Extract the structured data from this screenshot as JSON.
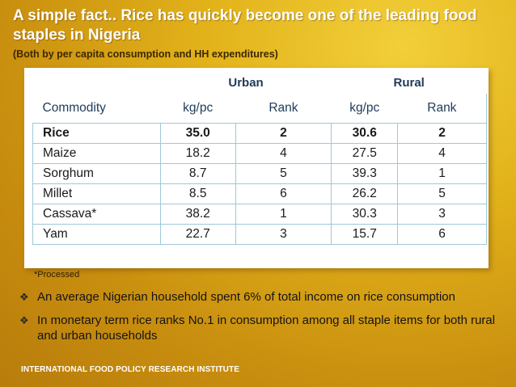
{
  "slide": {
    "title": "A simple fact.. Rice has quickly become one of the leading food staples in Nigeria",
    "subtitle": "(Both by per capita consumption and HH expenditures)"
  },
  "table": {
    "group_headers": {
      "urban": "Urban",
      "rural": "Rural"
    },
    "columns": [
      "Commodity",
      "kg/pc",
      "Rank",
      "kg/pc",
      "Rank"
    ],
    "rows": [
      [
        "Rice",
        "35.0",
        "2",
        "30.6",
        "2"
      ],
      [
        "Maize",
        "18.2",
        "4",
        "27.5",
        "4"
      ],
      [
        "Sorghum",
        "8.7",
        "5",
        "39.3",
        "1"
      ],
      [
        "Millet",
        "8.5",
        "6",
        "26.2",
        "5"
      ],
      [
        "Cassava*",
        "38.2",
        "1",
        "30.3",
        "3"
      ],
      [
        "Yam",
        "22.7",
        "3",
        "15.7",
        "6"
      ]
    ]
  },
  "footnote": "*Processed",
  "bullets": [
    "An average Nigerian household spent 6% of total income on rice consumption",
    "In monetary term rice ranks No.1 in consumption among all staple items for both rural and urban households"
  ],
  "footer": "INTERNATIONAL FOOD POLICY RESEARCH INSTITUTE",
  "colors": {
    "background": "#e2b21a",
    "header_text": "#1e3a58",
    "grid": "#9fc8d8"
  },
  "icons": {
    "bullet": "diamond-bullet-icon"
  }
}
